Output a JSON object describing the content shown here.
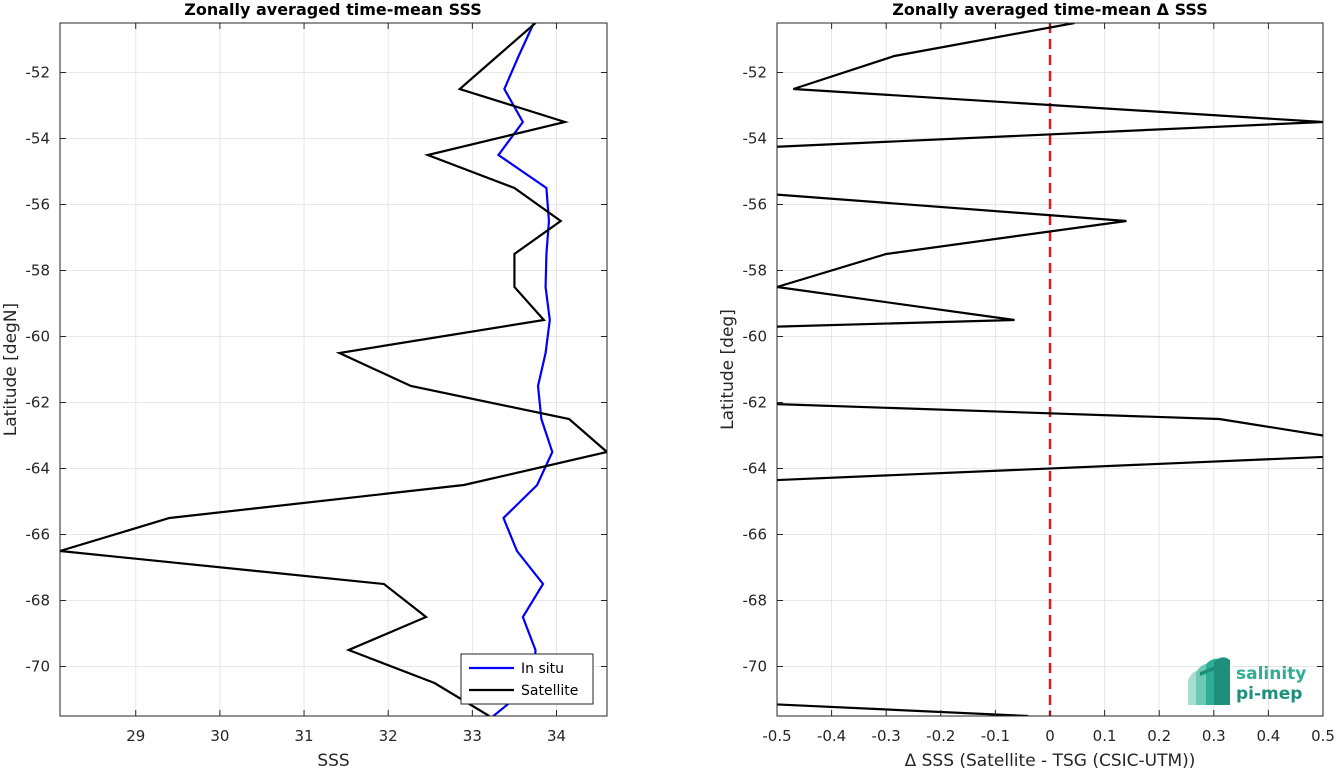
{
  "chart_data": [
    {
      "type": "line",
      "title": "Zonally averaged time-mean SSS",
      "xlabel": "SSS",
      "ylabel": "Latitude [degN]",
      "xlim": [
        28.1,
        34.6
      ],
      "ylim": [
        -71.5,
        -50.5
      ],
      "xticks": [
        29,
        30,
        31,
        32,
        33,
        34
      ],
      "yticks": [
        -52,
        -54,
        -56,
        -58,
        -60,
        -62,
        -64,
        -66,
        -68,
        -70
      ],
      "grid": true,
      "legend_position": "bottom-right",
      "series": [
        {
          "name": "In situ",
          "color": "#0000ff",
          "points": [
            [
              33.73,
              -50.5
            ],
            [
              33.55,
              -51.5
            ],
            [
              33.38,
              -52.5
            ],
            [
              33.6,
              -53.5
            ],
            [
              33.31,
              -54.5
            ],
            [
              33.88,
              -55.5
            ],
            [
              33.91,
              -56.5
            ],
            [
              33.88,
              -57.5
            ],
            [
              33.87,
              -58.5
            ],
            [
              33.92,
              -59.5
            ],
            [
              33.87,
              -60.5
            ],
            [
              33.78,
              -61.5
            ],
            [
              33.82,
              -62.5
            ],
            [
              33.95,
              -63.5
            ],
            [
              33.77,
              -64.5
            ],
            [
              33.37,
              -65.5
            ],
            [
              33.53,
              -66.5
            ],
            [
              33.84,
              -67.5
            ],
            [
              33.6,
              -68.5
            ],
            [
              33.75,
              -69.5
            ],
            [
              33.73,
              -70.5
            ],
            [
              33.25,
              -71.5
            ]
          ]
        },
        {
          "name": "Satellite",
          "color": "#000000",
          "points": [
            [
              33.75,
              -50.5
            ],
            [
              33.3,
              -51.5
            ],
            [
              32.85,
              -52.5
            ],
            [
              34.1,
              -53.5
            ],
            [
              32.47,
              -54.5
            ],
            [
              33.5,
              -55.5
            ],
            [
              34.05,
              -56.5
            ],
            [
              33.5,
              -57.5
            ],
            [
              33.5,
              -58.5
            ],
            [
              33.85,
              -59.5
            ],
            [
              31.42,
              -60.5
            ],
            [
              32.27,
              -61.5
            ],
            [
              34.15,
              -62.5
            ],
            [
              34.6,
              -63.5
            ],
            [
              32.9,
              -64.5
            ],
            [
              29.4,
              -65.5
            ],
            [
              28.1,
              -66.5
            ],
            [
              31.95,
              -67.5
            ],
            [
              32.45,
              -68.5
            ],
            [
              31.53,
              -69.5
            ],
            [
              32.55,
              -70.5
            ],
            [
              33.2,
              -71.5
            ]
          ]
        }
      ]
    },
    {
      "type": "line",
      "title": "Zonally averaged time-mean Δ SSS",
      "xlabel": "Δ SSS (Satellite - TSG (CSIC-UTM))",
      "ylabel": "Latitude [deg]",
      "xlim": [
        -0.5,
        0.5
      ],
      "ylim": [
        -71.5,
        -50.5
      ],
      "xticks": [
        -0.5,
        -0.4,
        -0.3,
        -0.2,
        -0.1,
        0,
        0.1,
        0.2,
        0.3,
        0.4,
        0.5
      ],
      "xtick_labels": [
        "-0.5",
        "-0.4",
        "-0.3",
        "-0.2",
        "-0.1",
        "0",
        "0.1",
        "0.2",
        "0.3",
        "0.4",
        "0.5"
      ],
      "yticks": [
        -52,
        -54,
        -56,
        -58,
        -60,
        -62,
        -64,
        -66,
        -68,
        -70
      ],
      "grid": true,
      "zero_line": {
        "x": 0,
        "color": "#e41a1c",
        "style": "dashed"
      },
      "series": [
        {
          "color": "#000000",
          "segments": [
            [
              [
                0.045,
                -50.5
              ],
              [
                -0.285,
                -51.5
              ],
              [
                -0.47,
                -52.5
              ],
              [
                0.5,
                -53.5
              ],
              [
                -0.5,
                -54.25
              ]
            ],
            [
              [
                -0.5,
                -55.7
              ],
              [
                0.14,
                -56.5
              ],
              [
                -0.3,
                -57.5
              ],
              [
                -0.5,
                -58.5
              ],
              [
                -0.065,
                -59.5
              ],
              [
                -0.5,
                -59.7
              ]
            ],
            [
              [
                -0.5,
                -62.05
              ],
              [
                0.31,
                -62.5
              ],
              [
                0.5,
                -63.0
              ]
            ],
            [
              [
                0.5,
                -63.65
              ],
              [
                -0.5,
                -64.35
              ]
            ],
            [
              [
                -0.5,
                -71.15
              ],
              [
                -0.04,
                -71.5
              ]
            ]
          ]
        }
      ]
    }
  ],
  "logo": {
    "line1": "salinity",
    "line2": "pi-mep"
  }
}
